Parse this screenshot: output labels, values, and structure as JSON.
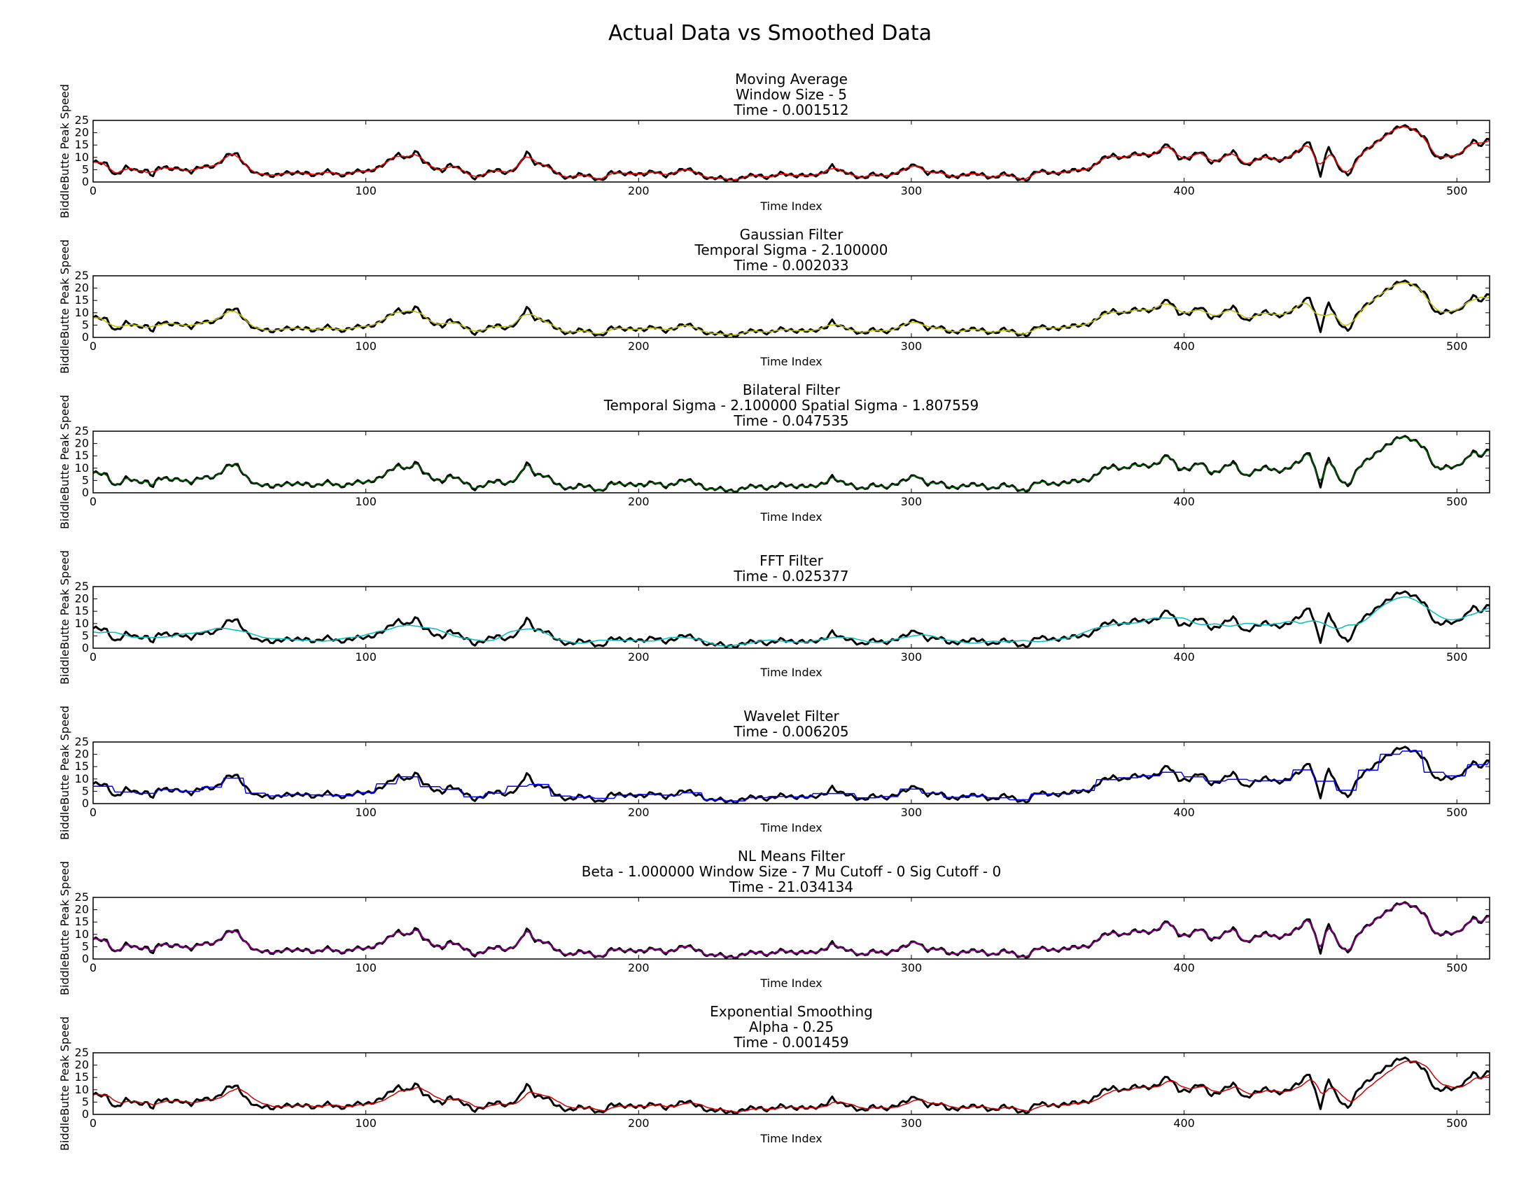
{
  "figure": {
    "suptitle": "Actual Data vs Smoothed Data"
  },
  "chart_data": [
    {
      "type": "line",
      "title_lines": [
        "Moving Average",
        "Window Size - 5",
        "Time - 0.001512"
      ],
      "xlabel": "Time Index",
      "ylabel": "BiddleButte Peak Speed",
      "xlim": [
        0,
        512
      ],
      "ylim": [
        0,
        25
      ],
      "xticks": [
        0,
        100,
        200,
        300,
        400,
        500
      ],
      "yticks": [
        0,
        5,
        10,
        15,
        20,
        25
      ],
      "series": [
        {
          "role": "actual",
          "color": "#000000",
          "linewidth": 3,
          "smooth": 0,
          "window": 0,
          "wobble": 0
        },
        {
          "role": "smoothed",
          "color": "#ff0000",
          "linewidth": 1.5,
          "smooth": 1,
          "window": 2,
          "wobble": 0
        }
      ]
    },
    {
      "type": "line",
      "title_lines": [
        "Gaussian Filter",
        "Temporal Sigma - 2.100000",
        "Time - 0.002033"
      ],
      "xlabel": "Time Index",
      "ylabel": "BiddleButte Peak Speed",
      "xlim": [
        0,
        512
      ],
      "ylim": [
        0,
        25
      ],
      "xticks": [
        0,
        100,
        200,
        300,
        400,
        500
      ],
      "yticks": [
        0,
        5,
        10,
        15,
        20,
        25
      ],
      "series": [
        {
          "role": "actual",
          "color": "#000000",
          "linewidth": 3,
          "smooth": 0,
          "window": 0,
          "wobble": 0
        },
        {
          "role": "smoothed",
          "color": "#bfbf00",
          "linewidth": 1.5,
          "smooth": 1,
          "window": 3,
          "wobble": 0
        }
      ]
    },
    {
      "type": "line",
      "title_lines": [
        "Bilateral Filter",
        "Temporal Sigma - 2.100000  Spatial Sigma - 1.807559",
        "Time - 0.047535"
      ],
      "xlabel": "Time Index",
      "ylabel": "BiddleButte Peak Speed",
      "xlim": [
        0,
        512
      ],
      "ylim": [
        0,
        25
      ],
      "xticks": [
        0,
        100,
        200,
        300,
        400,
        500
      ],
      "yticks": [
        0,
        5,
        10,
        15,
        20,
        25
      ],
      "series": [
        {
          "role": "actual",
          "color": "#000000",
          "linewidth": 3,
          "smooth": 0,
          "window": 0,
          "wobble": 0
        },
        {
          "role": "smoothed",
          "color": "#006400",
          "linewidth": 1.5,
          "smooth": 1,
          "window": 1,
          "wobble": 0
        }
      ]
    },
    {
      "type": "line",
      "title_lines": [
        "FFT Filter",
        "Time - 0.025377"
      ],
      "xlabel": "Time Index",
      "ylabel": "BiddleButte Peak Speed",
      "xlim": [
        0,
        512
      ],
      "ylim": [
        0,
        25
      ],
      "xticks": [
        0,
        100,
        200,
        300,
        400,
        500
      ],
      "yticks": [
        0,
        5,
        10,
        15,
        20,
        25
      ],
      "series": [
        {
          "role": "actual",
          "color": "#000000",
          "linewidth": 3,
          "smooth": 0,
          "window": 0,
          "wobble": 0
        },
        {
          "role": "smoothed",
          "color": "#00bfbf",
          "linewidth": 1.5,
          "smooth": 1,
          "window": 8,
          "wobble": 0.6
        }
      ]
    },
    {
      "type": "line",
      "title_lines": [
        "Wavelet Filter",
        "Time - 0.006205"
      ],
      "xlabel": "Time Index",
      "ylabel": "BiddleButte Peak Speed",
      "xlim": [
        0,
        512
      ],
      "ylim": [
        0,
        25
      ],
      "xticks": [
        0,
        100,
        200,
        300,
        400,
        500
      ],
      "yticks": [
        0,
        5,
        10,
        15,
        20,
        25
      ],
      "series": [
        {
          "role": "actual",
          "color": "#000000",
          "linewidth": 3,
          "smooth": 0,
          "window": 0,
          "wobble": 0
        },
        {
          "role": "smoothed",
          "color": "#0000ff",
          "linewidth": 1.5,
          "smooth": 2,
          "window": 4,
          "wobble": 0
        }
      ]
    },
    {
      "type": "line",
      "title_lines": [
        "NL Means Filter",
        "Beta - 1.000000  Window Size - 7  Mu Cutoff - 0  Sig Cutoff - 0",
        "Time - 21.034134"
      ],
      "xlabel": "Time Index",
      "ylabel": "BiddleButte Peak Speed",
      "xlim": [
        0,
        512
      ],
      "ylim": [
        0,
        25
      ],
      "xticks": [
        0,
        100,
        200,
        300,
        400,
        500
      ],
      "yticks": [
        0,
        5,
        10,
        15,
        20,
        25
      ],
      "series": [
        {
          "role": "actual",
          "color": "#000000",
          "linewidth": 3,
          "smooth": 0,
          "window": 0,
          "wobble": 0
        },
        {
          "role": "smoothed",
          "color": "#800080",
          "linewidth": 2,
          "smooth": 1,
          "window": 1,
          "wobble": 0
        }
      ]
    },
    {
      "type": "line",
      "title_lines": [
        "Exponential Smoothing",
        "Alpha - 0.25",
        "Time - 0.001459"
      ],
      "xlabel": "Time Index",
      "ylabel": "BiddleButte Peak Speed",
      "xlim": [
        0,
        512
      ],
      "ylim": [
        0,
        25
      ],
      "xticks": [
        0,
        100,
        200,
        300,
        400,
        500
      ],
      "yticks": [
        0,
        5,
        10,
        15,
        20,
        25
      ],
      "series": [
        {
          "role": "actual",
          "color": "#000000",
          "linewidth": 3,
          "smooth": 0,
          "window": 0,
          "wobble": 0
        },
        {
          "role": "smoothed",
          "color": "#cc0000",
          "linewidth": 1.5,
          "smooth": 3,
          "window": 0.25,
          "wobble": 0
        }
      ]
    }
  ],
  "actual_data": {
    "x_start": 0,
    "x_step": 1,
    "anchors": [
      [
        0,
        8
      ],
      [
        5,
        7
      ],
      [
        8,
        3
      ],
      [
        12,
        6
      ],
      [
        16,
        4
      ],
      [
        20,
        5
      ],
      [
        22,
        3
      ],
      [
        24,
        6
      ],
      [
        28,
        5
      ],
      [
        32,
        6
      ],
      [
        36,
        4
      ],
      [
        40,
        6
      ],
      [
        45,
        7
      ],
      [
        50,
        11
      ],
      [
        53,
        11
      ],
      [
        56,
        7
      ],
      [
        60,
        3
      ],
      [
        65,
        2.5
      ],
      [
        70,
        4
      ],
      [
        74,
        3
      ],
      [
        78,
        4
      ],
      [
        82,
        3
      ],
      [
        86,
        4
      ],
      [
        90,
        3
      ],
      [
        96,
        4
      ],
      [
        100,
        4
      ],
      [
        104,
        6
      ],
      [
        108,
        8
      ],
      [
        112,
        11
      ],
      [
        116,
        10
      ],
      [
        118,
        13
      ],
      [
        121,
        8
      ],
      [
        124,
        6
      ],
      [
        128,
        5
      ],
      [
        131,
        7
      ],
      [
        134,
        5
      ],
      [
        137,
        4
      ],
      [
        140,
        2
      ],
      [
        144,
        3
      ],
      [
        148,
        5
      ],
      [
        152,
        4
      ],
      [
        156,
        6
      ],
      [
        159,
        12
      ],
      [
        162,
        8
      ],
      [
        166,
        7
      ],
      [
        170,
        3
      ],
      [
        174,
        2
      ],
      [
        178,
        3
      ],
      [
        182,
        2
      ],
      [
        186,
        1
      ],
      [
        190,
        4
      ],
      [
        194,
        3
      ],
      [
        198,
        4
      ],
      [
        202,
        3
      ],
      [
        206,
        4
      ],
      [
        210,
        3
      ],
      [
        214,
        4
      ],
      [
        218,
        5
      ],
      [
        222,
        4
      ],
      [
        226,
        1
      ],
      [
        230,
        1.5
      ],
      [
        236,
        1
      ],
      [
        240,
        2
      ],
      [
        244,
        3
      ],
      [
        248,
        2
      ],
      [
        252,
        3
      ],
      [
        256,
        3
      ],
      [
        260,
        3
      ],
      [
        264,
        2
      ],
      [
        268,
        4
      ],
      [
        271,
        7
      ],
      [
        274,
        4
      ],
      [
        278,
        3
      ],
      [
        282,
        2
      ],
      [
        286,
        3
      ],
      [
        290,
        2
      ],
      [
        294,
        4
      ],
      [
        298,
        5
      ],
      [
        302,
        7
      ],
      [
        306,
        4
      ],
      [
        310,
        4
      ],
      [
        314,
        2
      ],
      [
        318,
        3
      ],
      [
        322,
        3
      ],
      [
        326,
        3
      ],
      [
        330,
        2
      ],
      [
        334,
        3
      ],
      [
        338,
        2
      ],
      [
        342,
        1
      ],
      [
        346,
        4
      ],
      [
        350,
        4
      ],
      [
        354,
        4
      ],
      [
        358,
        4
      ],
      [
        362,
        5
      ],
      [
        366,
        6
      ],
      [
        370,
        9
      ],
      [
        374,
        11
      ],
      [
        378,
        10
      ],
      [
        382,
        11
      ],
      [
        386,
        11
      ],
      [
        390,
        12
      ],
      [
        394,
        15
      ],
      [
        398,
        10
      ],
      [
        402,
        10
      ],
      [
        406,
        12
      ],
      [
        410,
        8
      ],
      [
        414,
        10
      ],
      [
        418,
        12
      ],
      [
        422,
        7
      ],
      [
        426,
        9
      ],
      [
        430,
        10
      ],
      [
        434,
        9
      ],
      [
        438,
        10
      ],
      [
        442,
        12
      ],
      [
        446,
        17
      ],
      [
        448,
        10
      ],
      [
        450,
        3
      ],
      [
        453,
        14
      ],
      [
        456,
        7
      ],
      [
        460,
        3
      ],
      [
        464,
        10
      ],
      [
        468,
        14
      ],
      [
        472,
        18
      ],
      [
        476,
        20
      ],
      [
        480,
        23
      ],
      [
        484,
        22
      ],
      [
        488,
        18
      ],
      [
        492,
        10
      ],
      [
        496,
        11
      ],
      [
        500,
        10
      ],
      [
        504,
        14
      ],
      [
        506,
        18
      ],
      [
        508,
        15
      ],
      [
        510,
        16
      ],
      [
        512,
        17
      ]
    ]
  }
}
